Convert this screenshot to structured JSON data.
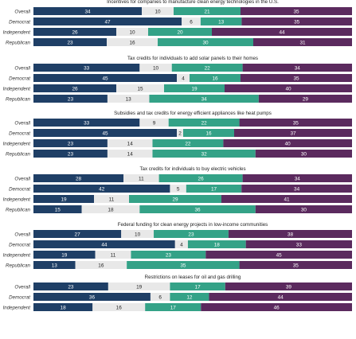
{
  "chart_data": {
    "type": "bar",
    "stacked": true,
    "orientation": "horizontal",
    "grid": false,
    "legend": "none",
    "segment_colors": [
      "#1f3f66",
      "#e8e8e8",
      "#34a287",
      "#5b2a5e"
    ],
    "panels": [
      {
        "title": "Incentives for companies to manufacture clean energy technologies in the U.S.",
        "rows": [
          {
            "label": "Overall",
            "values": [
              34,
              10,
              21,
              35
            ]
          },
          {
            "label": "Democrat",
            "values": [
              47,
              6,
              13,
              35
            ]
          },
          {
            "label": "Independent",
            "values": [
              26,
              10,
              20,
              44
            ]
          },
          {
            "label": "Republican",
            "values": [
              23,
              16,
              30,
              31
            ]
          }
        ]
      },
      {
        "title": "Tax credits for individuals to add solar panels to their homes",
        "rows": [
          {
            "label": "Overall",
            "values": [
              33,
              10,
              22,
              34
            ]
          },
          {
            "label": "Democrat",
            "values": [
              45,
              4,
              16,
              35
            ]
          },
          {
            "label": "Independent",
            "values": [
              26,
              15,
              19,
              40
            ]
          },
          {
            "label": "Republican",
            "values": [
              23,
              13,
              34,
              29
            ]
          }
        ]
      },
      {
        "title": "Subsidies and tax credits for energy efficient appliances like heat pumps",
        "rows": [
          {
            "label": "Overall",
            "values": [
              33,
              9,
              22,
              35
            ]
          },
          {
            "label": "Democrat",
            "values": [
              45,
              2,
              16,
              37
            ]
          },
          {
            "label": "Independent",
            "values": [
              23,
              14,
              22,
              40
            ]
          },
          {
            "label": "Republican",
            "values": [
              23,
              14,
              32,
              30
            ]
          }
        ]
      },
      {
        "title": "Tax credits for individuals to buy electric vehicles",
        "rows": [
          {
            "label": "Overall",
            "values": [
              28,
              11,
              26,
              34
            ]
          },
          {
            "label": "Democrat",
            "values": [
              42,
              5,
              17,
              34
            ]
          },
          {
            "label": "Independent",
            "values": [
              19,
              11,
              29,
              41
            ]
          },
          {
            "label": "Republican",
            "values": [
              15,
              18,
              36,
              30
            ]
          }
        ]
      },
      {
        "title": "Federal funding for clean energy projects in low-income communities",
        "rows": [
          {
            "label": "Overall",
            "values": [
              27,
              10,
              23,
              38
            ]
          },
          {
            "label": "Democrat",
            "values": [
              44,
              4,
              18,
              33
            ]
          },
          {
            "label": "Independent",
            "values": [
              19,
              11,
              23,
              45
            ]
          },
          {
            "label": "Republican",
            "values": [
              13,
              16,
              35,
              35
            ]
          }
        ]
      },
      {
        "title": "Restrictions on leases for oil and gas drilling",
        "rows": [
          {
            "label": "Overall",
            "values": [
              23,
              19,
              17,
              39
            ]
          },
          {
            "label": "Democrat",
            "values": [
              36,
              6,
              12,
              44
            ]
          },
          {
            "label": "Independent",
            "values": [
              18,
              16,
              17,
              46
            ]
          }
        ]
      }
    ]
  }
}
